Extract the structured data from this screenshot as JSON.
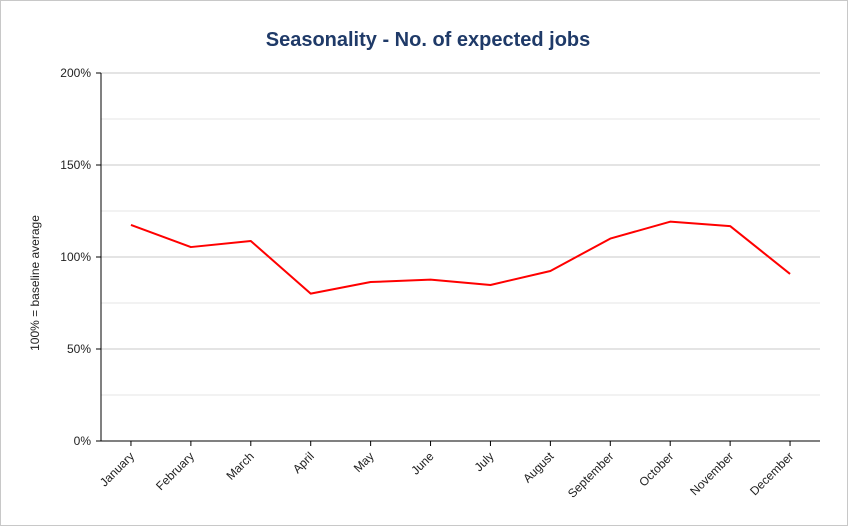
{
  "chart_data": {
    "type": "line",
    "title": "Seasonality - No. of expected jobs",
    "xlabel": "",
    "ylabel": "100% = baseline average",
    "categories": [
      "January",
      "February",
      "March",
      "April",
      "May",
      "June",
      "July",
      "August",
      "September",
      "October",
      "November",
      "December"
    ],
    "series": [
      {
        "values": [
          117.4,
          105.4,
          108.7,
          80.1,
          86.4,
          87.7,
          84.8,
          92.4,
          110.0,
          119.2,
          116.8,
          90.8
        ],
        "color": "#ff0000"
      }
    ],
    "ylim": [
      0,
      200
    ],
    "yticks": [
      0,
      50,
      100,
      150,
      200
    ],
    "ytick_labels": [
      "0%",
      "50%",
      "100%",
      "150%",
      "200%"
    ],
    "minor_grid_step": 25,
    "grid": true,
    "legend": "none"
  }
}
